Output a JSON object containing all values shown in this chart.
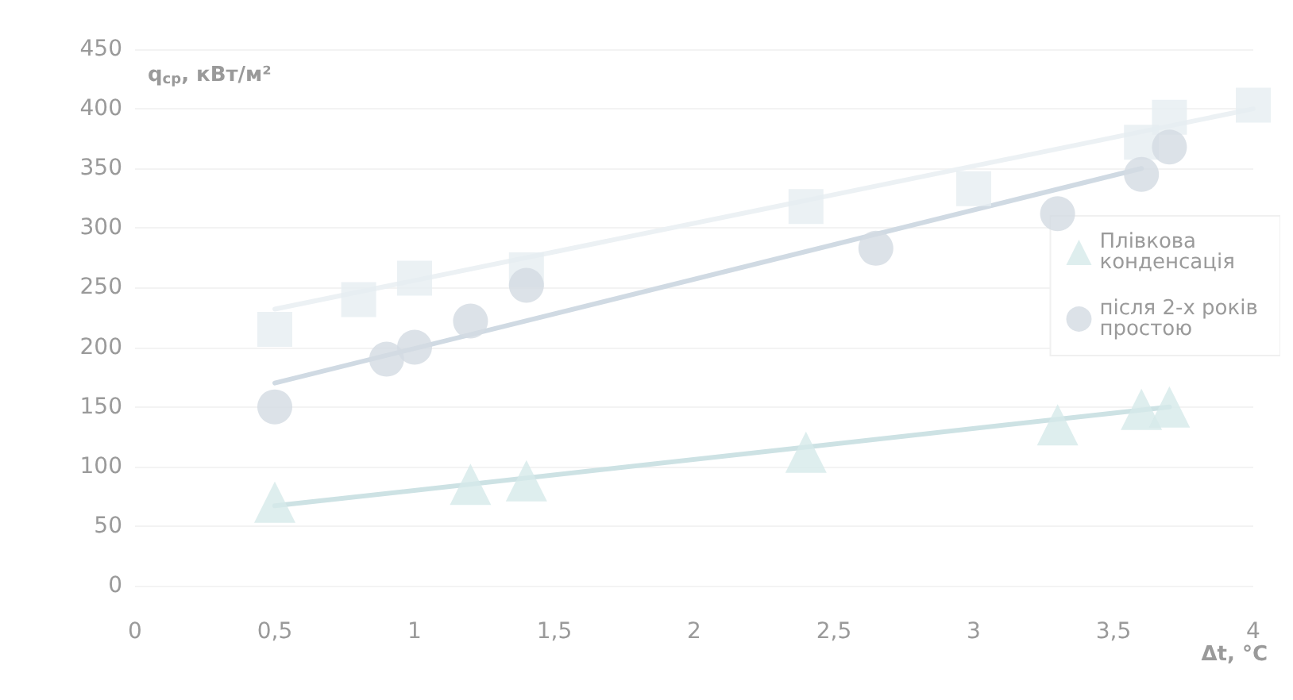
{
  "chart_data": {
    "type": "scatter",
    "ylabel": "q$_{ср}$, кВт/м²",
    "xlabel": "Δt, °C",
    "xlim": [
      0,
      4
    ],
    "xticks": [
      0,
      {
        "value": 0.5,
        "label": "0,5"
      },
      1,
      {
        "value": 1.5,
        "label": "1,5"
      },
      2,
      {
        "value": 2.5,
        "label": "2,5"
      },
      3,
      {
        "value": 3.5,
        "label": "3,5"
      },
      4
    ],
    "ylim": [
      0,
      450
    ],
    "yticks": [
      0,
      50,
      100,
      150,
      200,
      250,
      300,
      350,
      400,
      450
    ],
    "grid": "y",
    "legend": "right",
    "series": [
      {
        "name": "Плівкова конденсація",
        "marker": "triangle",
        "color": "#d6eaea",
        "x": [
          0.5,
          1.2,
          1.4,
          2.4,
          3.3,
          3.6,
          3.7
        ],
        "values": [
          70,
          85,
          88,
          112,
          135,
          148,
          150
        ]
      },
      {
        "name": "після 2-х років простою",
        "marker": "circle",
        "color": "#d3dbe2",
        "x": [
          0.5,
          0.9,
          1.0,
          1.2,
          1.4,
          2.65,
          3.3,
          3.6,
          3.7
        ],
        "values": [
          150,
          190,
          200,
          222,
          252,
          283,
          312,
          345,
          368
        ]
      },
      {
        "marker": "square",
        "color": "#e6edf1",
        "x": [
          0.5,
          0.8,
          1.0,
          1.4,
          2.4,
          3.0,
          3.6,
          3.7,
          4.0
        ],
        "values": [
          215,
          240,
          258,
          265,
          318,
          333,
          372,
          393,
          403
        ]
      },
      {
        "type": "line",
        "marker": "none",
        "color": "#cde2e4",
        "x": [
          0.5,
          3.7
        ],
        "values": [
          67,
          150
        ]
      },
      {
        "type": "line",
        "marker": "none",
        "color": "#d0dae3",
        "x": [
          0.5,
          3.6
        ],
        "values": [
          170,
          350
        ]
      },
      {
        "type": "line",
        "marker": "none",
        "color": "#ecf1f4",
        "x": [
          0.5,
          4.0
        ],
        "values": [
          232,
          400
        ]
      }
    ]
  }
}
